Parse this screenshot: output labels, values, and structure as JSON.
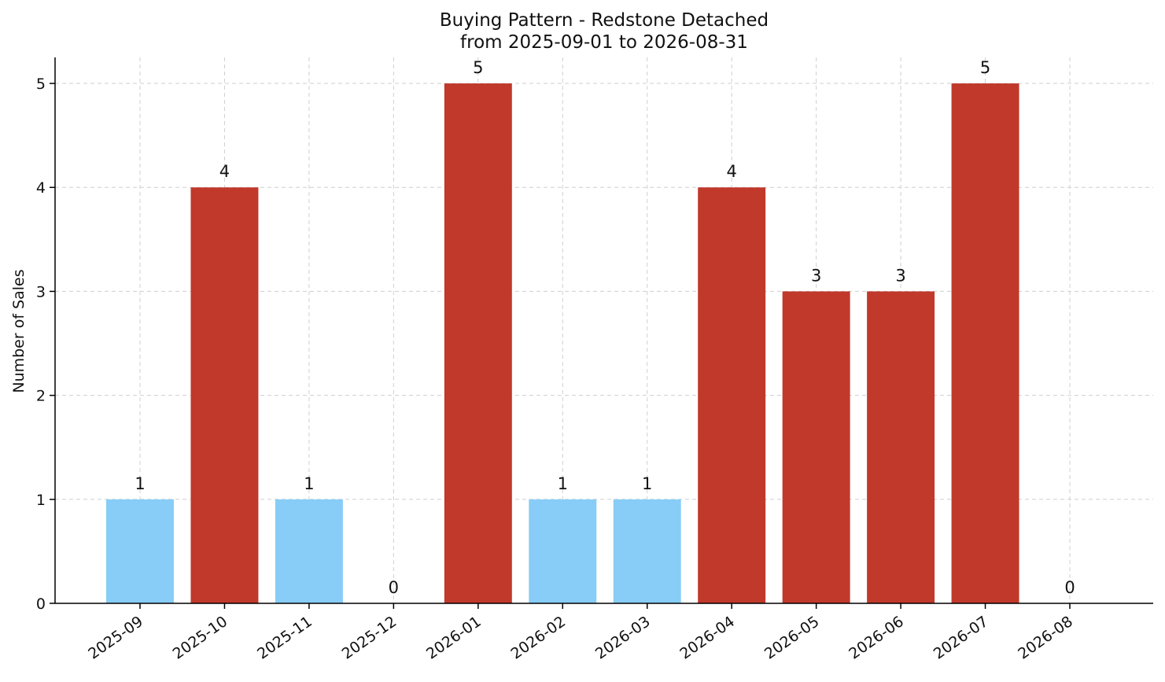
{
  "chart_data": {
    "type": "bar",
    "title": "Buying Pattern - Redstone Detached",
    "subtitle": "from 2025-09-01 to 2026-08-31",
    "xlabel": "",
    "ylabel": "Number of Sales",
    "categories": [
      "2025-09",
      "2025-10",
      "2025-11",
      "2025-12",
      "2026-01",
      "2026-02",
      "2026-03",
      "2026-04",
      "2026-05",
      "2026-06",
      "2026-07",
      "2026-08"
    ],
    "values": [
      1,
      4,
      1,
      0,
      5,
      1,
      1,
      4,
      3,
      3,
      5,
      0
    ],
    "yticks": [
      0,
      1,
      2,
      3,
      4,
      5
    ],
    "ylim": [
      0,
      5.25
    ],
    "grid": true,
    "legend": "none",
    "colors": {
      "high": "#c0392b",
      "low": "#87cdf7"
    },
    "high_threshold": 3
  }
}
